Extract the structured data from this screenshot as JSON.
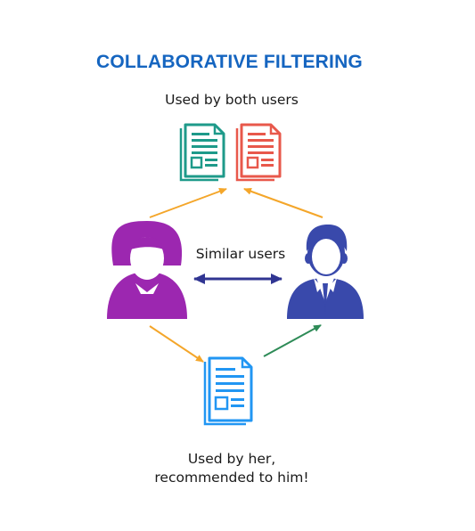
{
  "title": "COLLABORATIVE FILTERING",
  "labels": {
    "top": "Used by both users",
    "middle": "Similar users",
    "bottom_line1": "Used by her,",
    "bottom_line2": "recommended to him!"
  },
  "icons": [
    "document-icon",
    "document-icon",
    "woman-user-icon",
    "man-user-icon",
    "document-icon"
  ],
  "colors": {
    "title": "#1565c0",
    "doc_teal": "#1e9a8a",
    "doc_red": "#e8584b",
    "doc_blue": "#2196f3",
    "woman": "#9c27b0",
    "man": "#3949ab",
    "arrow_orange": "#f4a62a",
    "arrow_navy": "#303592",
    "arrow_green": "#2e8b57"
  }
}
